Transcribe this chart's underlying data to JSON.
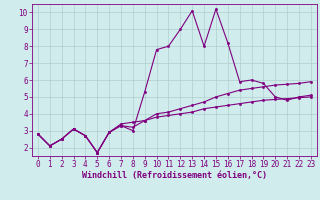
{
  "x": [
    0,
    1,
    2,
    3,
    4,
    5,
    6,
    7,
    8,
    9,
    10,
    11,
    12,
    13,
    14,
    15,
    16,
    17,
    18,
    19,
    20,
    21,
    22,
    23
  ],
  "line1": [
    2.8,
    2.1,
    2.5,
    3.1,
    2.7,
    1.7,
    2.9,
    3.3,
    3.0,
    5.3,
    7.8,
    8.0,
    9.0,
    10.1,
    8.0,
    10.2,
    8.2,
    5.9,
    6.0,
    5.8,
    5.0,
    4.8,
    5.0,
    5.1
  ],
  "line2": [
    2.8,
    2.1,
    2.5,
    3.1,
    2.7,
    1.7,
    2.9,
    3.3,
    3.2,
    3.6,
    4.0,
    4.1,
    4.3,
    4.5,
    4.7,
    5.0,
    5.2,
    5.4,
    5.5,
    5.6,
    5.7,
    5.75,
    5.8,
    5.9
  ],
  "line3": [
    2.8,
    2.1,
    2.5,
    3.1,
    2.7,
    1.7,
    2.9,
    3.4,
    3.5,
    3.6,
    3.8,
    3.9,
    4.0,
    4.1,
    4.3,
    4.4,
    4.5,
    4.6,
    4.7,
    4.8,
    4.85,
    4.9,
    4.95,
    5.0
  ],
  "line_color": "#800080",
  "bg_color": "#d0ecec",
  "grid_color": "#b0cece",
  "xlabel": "Windchill (Refroidissement éolien,°C)",
  "ylim": [
    1.5,
    10.5
  ],
  "xlim": [
    -0.5,
    23.5
  ],
  "yticks": [
    2,
    3,
    4,
    5,
    6,
    7,
    8,
    9,
    10
  ],
  "xticks": [
    0,
    1,
    2,
    3,
    4,
    5,
    6,
    7,
    8,
    9,
    10,
    11,
    12,
    13,
    14,
    15,
    16,
    17,
    18,
    19,
    20,
    21,
    22,
    23
  ],
  "figsize": [
    3.2,
    2.0
  ],
  "dpi": 100,
  "tick_fontsize": 5.5,
  "xlabel_fontsize": 6.0,
  "marker_size": 3
}
